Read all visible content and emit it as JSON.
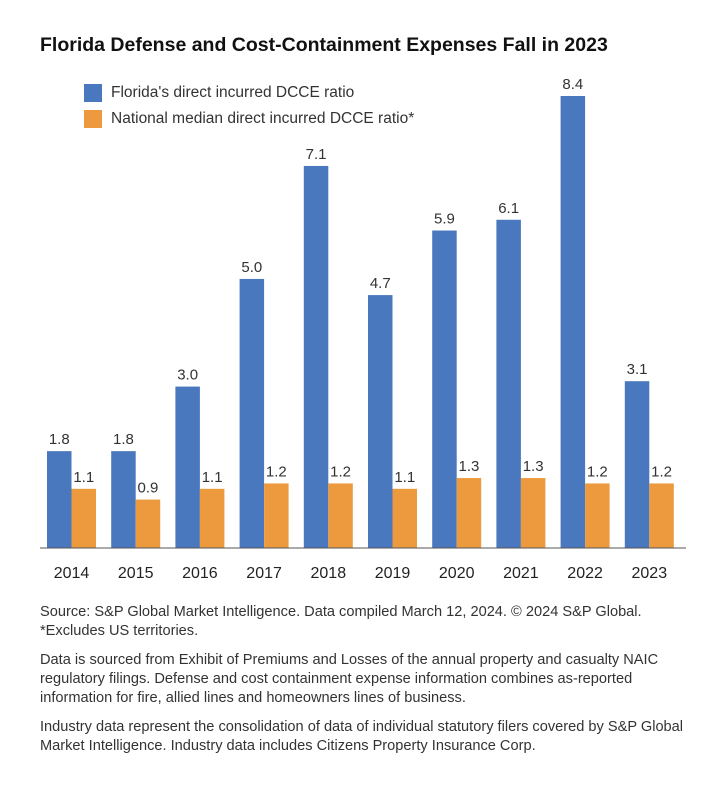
{
  "title": "Florida Defense and Cost-Containment Expenses Fall in 2023",
  "colors": {
    "florida": "#4a78bf",
    "national": "#ed9a3e"
  },
  "chart_data": {
    "type": "bar",
    "title": "Florida Defense and Cost-Containment Expenses Fall in 2023",
    "categories": [
      "2014",
      "2015",
      "2016",
      "2017",
      "2018",
      "2019",
      "2020",
      "2021",
      "2022",
      "2023"
    ],
    "series": [
      {
        "name": "Florida's direct incurred DCCE ratio",
        "values": [
          1.8,
          1.8,
          3.0,
          5.0,
          7.1,
          4.7,
          5.9,
          6.1,
          8.4,
          3.1
        ],
        "labels": [
          "1.8",
          "1.8",
          "3.0",
          "5.0",
          "7.1",
          "4.7",
          "5.9",
          "6.1",
          "8.4",
          "3.1"
        ]
      },
      {
        "name": "National median direct incurred DCCE ratio*",
        "values": [
          1.1,
          0.9,
          1.1,
          1.2,
          1.2,
          1.1,
          1.3,
          1.3,
          1.2,
          1.2
        ],
        "labels": [
          "1.1",
          "0.9",
          "1.1",
          "1.2",
          "1.2",
          "1.1",
          "1.3",
          "1.3",
          "1.2",
          "1.2"
        ]
      }
    ],
    "xlabel": "",
    "ylabel": "",
    "ylim": [
      0,
      8.4
    ],
    "grid": false,
    "legend": "top-left"
  },
  "notes": [
    "Source: S&P Global Market Intelligence. Data compiled March 12, 2024. © 2024 S&P Global. *Excludes US territories.",
    "Data is sourced from Exhibit of Premiums and Losses of the annual property and casualty NAIC regulatory filings. Defense and cost containment expense information combines as-reported information for fire, allied lines and homeowners lines of business.",
    "Industry data represent the consolidation of data of individual statutory filers covered by S&P Global Market Intelligence. Industry data includes Citizens Property Insurance Corp."
  ]
}
